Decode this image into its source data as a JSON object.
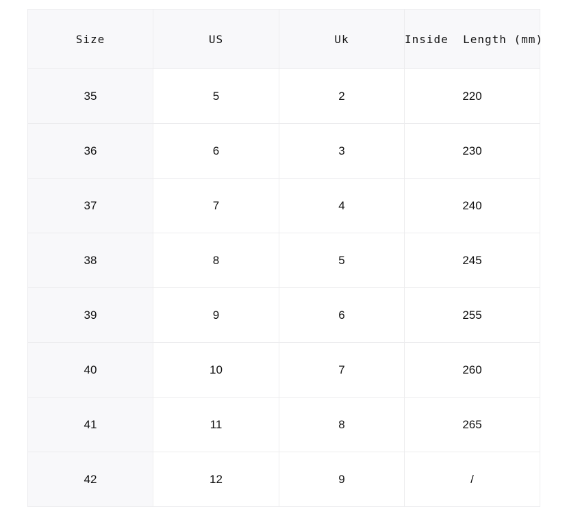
{
  "table": {
    "headers": [
      "Size",
      "US",
      "Uk",
      "Inside  Length (mm)"
    ],
    "rows": [
      [
        "35",
        "5",
        "2",
        "220"
      ],
      [
        "36",
        "6",
        "3",
        "230"
      ],
      [
        "37",
        "7",
        "4",
        "240"
      ],
      [
        "38",
        "8",
        "5",
        "245"
      ],
      [
        "39",
        "9",
        "6",
        "255"
      ],
      [
        "40",
        "10",
        "7",
        "260"
      ],
      [
        "41",
        "11",
        "8",
        "265"
      ],
      [
        "42",
        "12",
        "9",
        "/"
      ]
    ]
  }
}
